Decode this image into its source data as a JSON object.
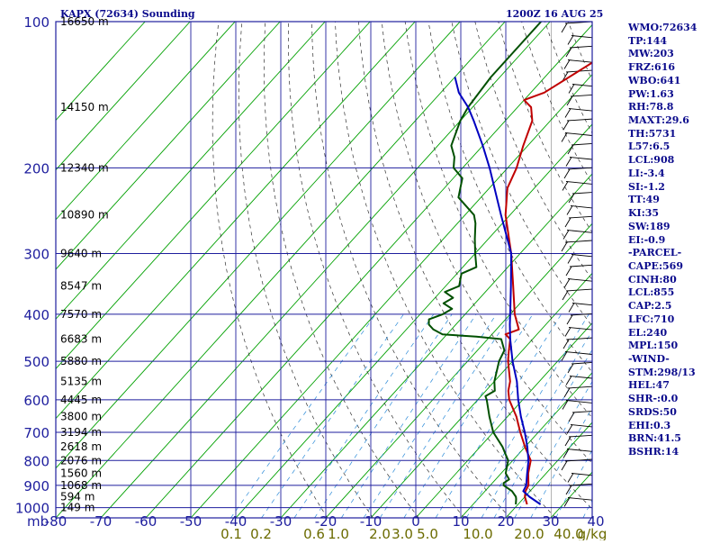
{
  "header": {
    "station_title": "KAPX (72634) Sounding",
    "time_title": "1200Z 16 AUG 25"
  },
  "indices": [
    "WMO:72634",
    "TP:144",
    "MW:203",
    "FRZ:616",
    "WBO:641",
    "PW:1.63",
    "RH:78.8",
    "MAXT:29.6",
    "TH:5731",
    "L57:6.5",
    "LCL:908",
    "LI:-3.4",
    "SI:-1.2",
    "TT:49",
    "KI:35",
    "SW:189",
    "EI:-0.9",
    "-PARCEL-",
    "CAPE:569",
    "CINH:80",
    "LCL:855",
    "CAP:2.5",
    "LFC:710",
    "EL:240",
    "MPL:150",
    "-WIND-",
    "STM:298/13",
    "HEL:47",
    "SHR-:0.0",
    "SRDS:50",
    "EHI:0.3",
    "BRN:41.5",
    "BSHR:14"
  ],
  "colors": {
    "temperature": "#c00000",
    "dewpoint": "#005000",
    "parcel": "#0000c0",
    "isobars": "#1e1e9e",
    "isotherms": "#00a000",
    "dry_adiabats": "#303030",
    "mixing_ratio": "#2a8ad8",
    "axis_text": "#1e1e9e",
    "mixing_text": "#6b6b00"
  },
  "chart_data": {
    "type": "line",
    "title": "KAPX (72634) Sounding",
    "subtitle": "1200Z 16 AUG 25",
    "xlabel": "",
    "ylabel": "mb",
    "x_ticks": [
      -80,
      -70,
      -60,
      -50,
      -40,
      -30,
      -20,
      -10,
      0,
      10,
      20,
      30,
      40
    ],
    "y_ticks": [
      100,
      200,
      300,
      400,
      500,
      600,
      700,
      800,
      900,
      1000
    ],
    "xlim": [
      -80,
      40
    ],
    "ylim": [
      1050,
      100
    ],
    "y_scale": "log",
    "grid": true,
    "heights": [
      {
        "p": 100,
        "label": "16650 m"
      },
      {
        "p": 150,
        "label": "14150 m"
      },
      {
        "p": 200,
        "label": "12340 m"
      },
      {
        "p": 250,
        "label": "10890 m"
      },
      {
        "p": 300,
        "label": "9640 m"
      },
      {
        "p": 350,
        "label": "8547 m"
      },
      {
        "p": 400,
        "label": "7570 m"
      },
      {
        "p": 450,
        "label": "6683 m"
      },
      {
        "p": 500,
        "label": "5880 m"
      },
      {
        "p": 550,
        "label": "5135 m"
      },
      {
        "p": 600,
        "label": "4445 m"
      },
      {
        "p": 650,
        "label": "3800 m"
      },
      {
        "p": 700,
        "label": "3194 m"
      },
      {
        "p": 750,
        "label": "2618 m"
      },
      {
        "p": 800,
        "label": "2076 m"
      },
      {
        "p": 850,
        "label": "1560 m"
      },
      {
        "p": 900,
        "label": "1068 m"
      },
      {
        "p": 950,
        "label": "594 m"
      },
      {
        "p": 1000,
        "label": "149 m"
      }
    ],
    "mixing_ratio_labels": [
      "0.1",
      "0.2",
      "0.6",
      "1.0",
      "2.0",
      "3.0",
      "5.0",
      "10.0",
      "20.0",
      "40.0",
      "g/kg"
    ],
    "series": [
      {
        "name": "Temperature",
        "points": [
          [
            985,
            22
          ],
          [
            950,
            20
          ],
          [
            925,
            19
          ],
          [
            900,
            18.5
          ],
          [
            850,
            16
          ],
          [
            800,
            14
          ],
          [
            750,
            10
          ],
          [
            700,
            6
          ],
          [
            650,
            2
          ],
          [
            600,
            -3
          ],
          [
            575,
            -5
          ],
          [
            550,
            -6.5
          ],
          [
            500,
            -11
          ],
          [
            475,
            -13
          ],
          [
            450,
            -15
          ],
          [
            440,
            -17
          ],
          [
            430,
            -15
          ],
          [
            400,
            -19
          ],
          [
            350,
            -25
          ],
          [
            300,
            -32
          ],
          [
            250,
            -41
          ],
          [
            220,
            -46
          ],
          [
            200,
            -48
          ],
          [
            180,
            -51
          ],
          [
            160,
            -54
          ],
          [
            150,
            -57
          ],
          [
            145,
            -60
          ],
          [
            140,
            -57
          ],
          [
            120,
            -52
          ],
          [
            100,
            -45
          ]
        ]
      },
      {
        "name": "Dewpoint",
        "points": [
          [
            985,
            19.5
          ],
          [
            960,
            18.5
          ],
          [
            950,
            18
          ],
          [
            925,
            16
          ],
          [
            900,
            13
          ],
          [
            890,
            12.5
          ],
          [
            875,
            13
          ],
          [
            850,
            11
          ],
          [
            825,
            10
          ],
          [
            800,
            9
          ],
          [
            775,
            7
          ],
          [
            750,
            5
          ],
          [
            700,
            0
          ],
          [
            650,
            -4
          ],
          [
            600,
            -8
          ],
          [
            590,
            -9
          ],
          [
            575,
            -8
          ],
          [
            550,
            -10
          ],
          [
            500,
            -13
          ],
          [
            475,
            -14
          ],
          [
            450,
            -17
          ],
          [
            445,
            -23
          ],
          [
            440,
            -31
          ],
          [
            430,
            -34
          ],
          [
            420,
            -36
          ],
          [
            410,
            -37
          ],
          [
            400,
            -35
          ],
          [
            390,
            -34
          ],
          [
            380,
            -37
          ],
          [
            370,
            -36
          ],
          [
            360,
            -39
          ],
          [
            350,
            -37
          ],
          [
            330,
            -39
          ],
          [
            320,
            -37
          ],
          [
            300,
            -40
          ],
          [
            280,
            -43
          ],
          [
            260,
            -46
          ],
          [
            250,
            -48
          ],
          [
            230,
            -55
          ],
          [
            210,
            -58
          ],
          [
            200,
            -62
          ],
          [
            190,
            -64
          ],
          [
            180,
            -67
          ],
          [
            160,
            -70
          ],
          [
            150,
            -71
          ],
          [
            130,
            -72
          ],
          [
            100,
            -72
          ]
        ]
      },
      {
        "name": "Parcel",
        "points": [
          [
            985,
            25
          ],
          [
            950,
            21
          ],
          [
            925,
            18.5
          ],
          [
            900,
            18
          ],
          [
            855,
            16
          ],
          [
            800,
            13.5
          ],
          [
            750,
            10.5
          ],
          [
            700,
            7
          ],
          [
            650,
            3
          ],
          [
            600,
            -1
          ],
          [
            550,
            -5
          ],
          [
            500,
            -10
          ],
          [
            450,
            -15
          ],
          [
            420,
            -18
          ],
          [
            400,
            -20
          ],
          [
            350,
            -25.5
          ],
          [
            300,
            -32
          ],
          [
            250,
            -42
          ],
          [
            200,
            -54
          ],
          [
            180,
            -60
          ],
          [
            160,
            -67
          ],
          [
            150,
            -71
          ],
          [
            140,
            -76
          ],
          [
            130,
            -80
          ]
        ]
      }
    ]
  }
}
